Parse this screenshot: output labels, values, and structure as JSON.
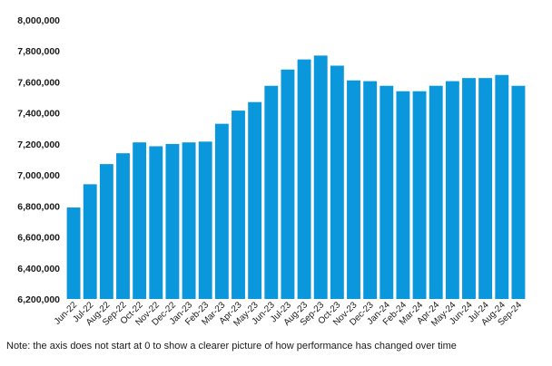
{
  "chart_data": {
    "type": "bar",
    "categories": [
      "Jun-22",
      "Jul-22",
      "Aug-22",
      "Sep-22",
      "Oct-22",
      "Nov-22",
      "Dec-22",
      "Jan-23",
      "Feb-23",
      "Mar-23",
      "Apr-23",
      "May-23",
      "Jun-23",
      "Jul-23",
      "Aug-23",
      "Sep-23",
      "Oct-23",
      "Nov-23",
      "Dec-23",
      "Jan-24",
      "Feb-24",
      "Mar-24",
      "Apr-24",
      "May-24",
      "Jun-24",
      "Jul-24",
      "Aug-24",
      "Sep-24"
    ],
    "values": [
      6790000,
      6940000,
      7070000,
      7140000,
      7210000,
      7185000,
      7200000,
      7210000,
      7215000,
      7330000,
      7415000,
      7470000,
      7575000,
      7680000,
      7745000,
      7770000,
      7705000,
      7610000,
      7605000,
      7575000,
      7540000,
      7540000,
      7575000,
      7605000,
      7625000,
      7625000,
      7645000,
      7575000
    ],
    "ylim": [
      6200000,
      8000000
    ],
    "yticks": [
      "6,200,000",
      "6,400,000",
      "6,600,000",
      "6,800,000",
      "7,000,000",
      "7,200,000",
      "7,400,000",
      "7,600,000",
      "7,800,000",
      "8,000,000"
    ],
    "title": "",
    "xlabel": "",
    "ylabel": "",
    "bar_color": "#0b97db",
    "grid": false,
    "legend": "none"
  },
  "note": "Note: the axis does not start at 0 to show a clearer picture of how performance has changed over time"
}
